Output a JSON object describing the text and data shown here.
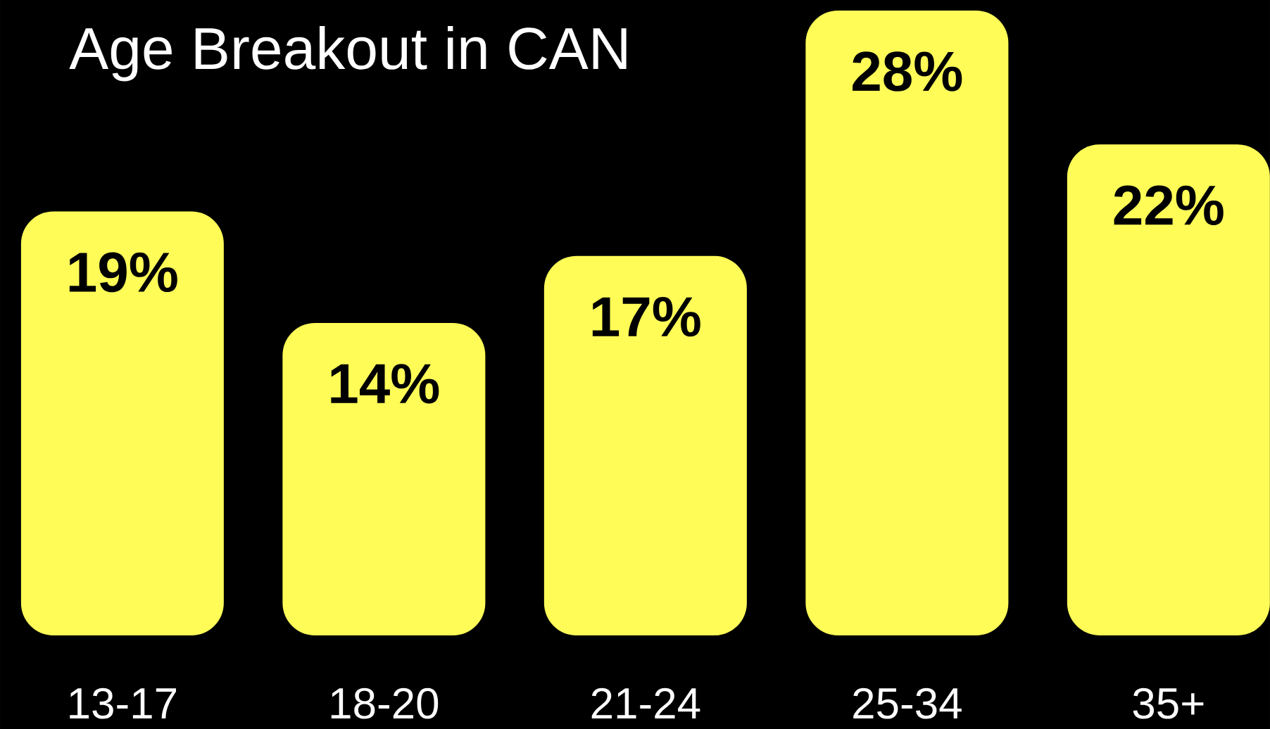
{
  "chart_data": {
    "type": "bar",
    "title": "Age Breakout in CAN",
    "categories": [
      "13-17",
      "18-20",
      "21-24",
      "25-34",
      "35+"
    ],
    "values": [
      19,
      14,
      17,
      28,
      22
    ],
    "value_labels": [
      "19%",
      "14%",
      "17%",
      "28%",
      "22%"
    ],
    "color": "#fffc58"
  }
}
